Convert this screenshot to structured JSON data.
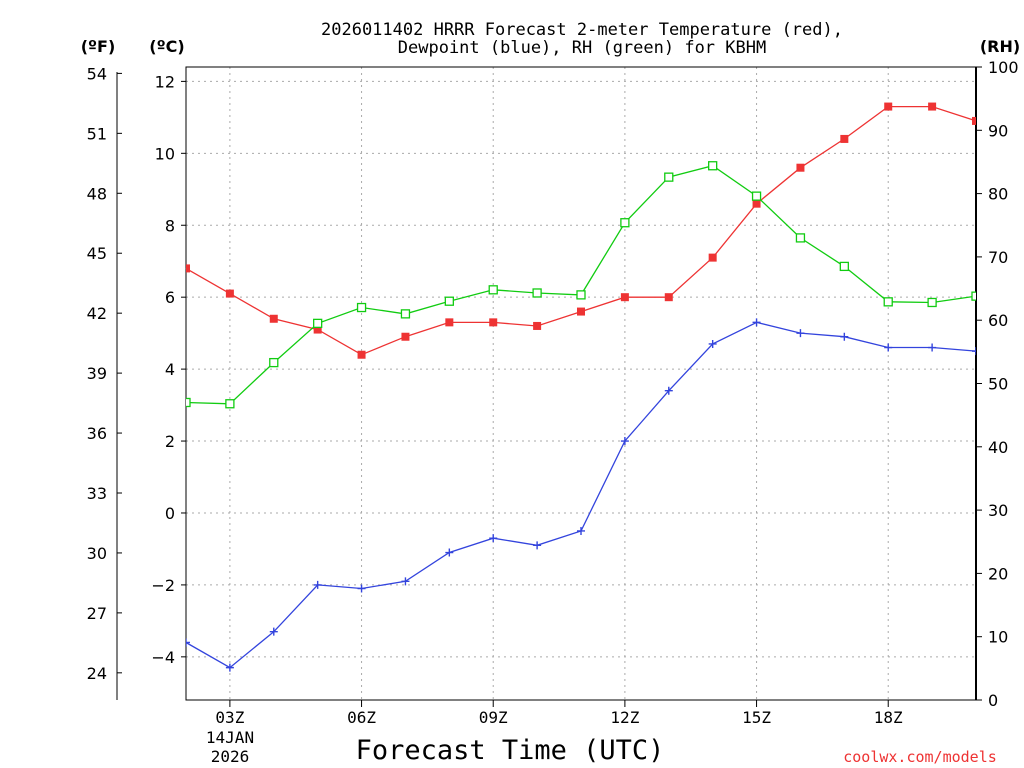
{
  "title": {
    "line1": "2026011402 HRRR Forecast 2-meter Temperature (red),",
    "line2": "Dewpoint (blue), RH (green) for KBHM"
  },
  "units": {
    "fahrenheit": "(ºF)",
    "celsius": "(ºC)",
    "rh": "(RH)"
  },
  "xlabel": "Forecast Time (UTC)",
  "date_label": {
    "day": "14JAN",
    "year": "2026"
  },
  "credit": "coolwx.com/models",
  "colors": {
    "temp": "#ee3333",
    "dew": "#3344dd",
    "rh": "#11cc11",
    "grid": "#aaaaaa",
    "axis": "#000000"
  },
  "chart_data": {
    "type": "line",
    "x_hours": [
      2,
      3,
      4,
      5,
      6,
      7,
      8,
      9,
      10,
      11,
      12,
      13,
      14,
      15,
      16,
      17,
      18,
      19,
      20
    ],
    "x_range": [
      2,
      20
    ],
    "x_ticks": [
      {
        "hour": 3,
        "label": "03Z"
      },
      {
        "hour": 6,
        "label": "06Z"
      },
      {
        "hour": 9,
        "label": "09Z"
      },
      {
        "hour": 12,
        "label": "12Z"
      },
      {
        "hour": 15,
        "label": "15Z"
      },
      {
        "hour": 18,
        "label": "18Z"
      }
    ],
    "celsius_axis": {
      "range": [
        -5.2,
        12.4
      ],
      "ticks": [
        -4,
        -2,
        0,
        2,
        4,
        6,
        8,
        10,
        12
      ]
    },
    "fahrenheit_axis": {
      "ticks": [
        24,
        27,
        30,
        33,
        36,
        39,
        42,
        45,
        48,
        51,
        54
      ]
    },
    "rh_axis": {
      "range": [
        0,
        100
      ],
      "ticks": [
        0,
        10,
        20,
        30,
        40,
        50,
        60,
        70,
        80,
        90,
        100
      ]
    },
    "series": [
      {
        "name": "Temperature",
        "axis": "celsius",
        "marker": "filled-square",
        "color": "#ee3333",
        "values": [
          6.8,
          6.1,
          5.4,
          5.1,
          4.4,
          4.9,
          5.3,
          5.3,
          5.2,
          5.6,
          6.0,
          6.0,
          7.1,
          8.6,
          9.6,
          10.4,
          11.3,
          11.3,
          10.9
        ]
      },
      {
        "name": "Dewpoint",
        "axis": "celsius",
        "marker": "plus",
        "color": "#3344dd",
        "values": [
          -3.6,
          -4.3,
          -3.3,
          -2.0,
          -2.1,
          -1.9,
          -1.1,
          -0.7,
          -0.9,
          -0.5,
          2.0,
          3.4,
          4.7,
          5.3,
          5.0,
          4.9,
          4.6,
          4.6,
          4.5
        ]
      },
      {
        "name": "RH",
        "axis": "rh",
        "marker": "open-square",
        "color": "#11cc11",
        "values": [
          47,
          46.8,
          53.3,
          59.5,
          62,
          61,
          63,
          64.8,
          64.3,
          64,
          75.4,
          82.6,
          84.4,
          79.6,
          73,
          68.5,
          62.9,
          62.8,
          63.8
        ]
      }
    ]
  }
}
